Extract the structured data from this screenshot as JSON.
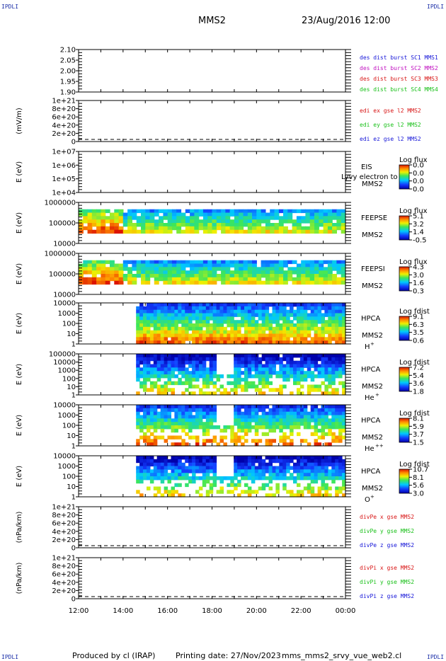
{
  "header": {
    "corner_label": "IPDLI",
    "spacecraft": "MMS2",
    "datetime": "23/Aug/2016 12:00"
  },
  "footer": {
    "produced_by": "Produced by cl (IRAP)",
    "printing_date": "Printing date: 27/Nov/2023",
    "filename": "mms_mms2_srvy_vue_web2.cl"
  },
  "colors": {
    "blue": "#1515d8",
    "red": "#d81515",
    "magenta": "#c010c0",
    "green": "#19c019",
    "accent_corner": "#1a2ea8"
  },
  "chart_data": [
    {
      "type": "line",
      "panel": "spacecraft-status",
      "ylabel": "",
      "yticks": [
        "2.10",
        "2.05",
        "2.00",
        "1.95",
        "1.90"
      ],
      "ylim": [
        1.9,
        2.1
      ],
      "legend": [
        "des dist burst SC1 MMS1",
        "des dist burst SC2 MMS2",
        "des dist burst SC3 MMS3",
        "des dist burst SC4 MMS4"
      ],
      "legend_colors": [
        "#1515d8",
        "#c010c0",
        "#d81515",
        "#19c019"
      ],
      "series": []
    },
    {
      "type": "line",
      "panel": "edi-electric-field",
      "ylabel": "(mV/m)",
      "yticks": [
        "1e+21",
        "8e+20",
        "6e+20",
        "4e+20",
        "2e+20",
        "0"
      ],
      "ylim": [
        0,
        1e+21
      ],
      "legend": [
        "edi ex gse l2 MMS2",
        "edi ey gse l2 MMS2",
        "edi ez gse l2 MMS2"
      ],
      "legend_colors": [
        "#d81515",
        "#19c019",
        "#1515d8"
      ],
      "series": [
        {
          "values": [
            0,
            0
          ]
        }
      ]
    },
    {
      "type": "heatmap",
      "panel": "eis",
      "ylabel": "E (eV)",
      "yticks": [
        "1e+07",
        "1e+06",
        "1e+05",
        "1e+04"
      ],
      "ylim": [
        10000.0,
        10000000.0
      ],
      "log": true,
      "instrument": "EIS",
      "spacecraft": "MMS2",
      "overlay_text": "Lyvy electron to",
      "colorbar": {
        "title": "Log flux",
        "ticks": [
          "0.0",
          "0.0",
          "0.0",
          "0.0"
        ]
      },
      "coverage": []
    },
    {
      "type": "heatmap",
      "panel": "feepse",
      "ylabel": "E (eV)",
      "yticks": [
        "1000000",
        "100000",
        "10000"
      ],
      "ylim": [
        10000.0,
        1000000.0
      ],
      "log": true,
      "instrument": "FEEPSE",
      "spacecraft": "MMS2",
      "colorbar": {
        "title": "Log flux",
        "ticks": [
          "5.1",
          "3.2",
          "1.4",
          "-0.5"
        ]
      },
      "coverage": [
        [
          "12:00",
          "24:00"
        ]
      ]
    },
    {
      "type": "heatmap",
      "panel": "feepsi",
      "ylabel": "E (eV)",
      "yticks": [
        "1000000",
        "100000",
        "10000"
      ],
      "ylim": [
        10000.0,
        1000000.0
      ],
      "log": true,
      "instrument": "FEEPSI",
      "spacecraft": "MMS2",
      "colorbar": {
        "title": "Log flux",
        "ticks": [
          "4.3",
          "3.0",
          "1.6",
          "0.3"
        ]
      },
      "coverage": [
        [
          "12:00",
          "24:00"
        ]
      ]
    },
    {
      "type": "heatmap",
      "panel": "hpca-h",
      "ylabel": "E (eV)",
      "yticks": [
        "10000",
        "1000",
        "100",
        "10",
        "1"
      ],
      "ylim": [
        1,
        10000
      ],
      "log": true,
      "instrument": "HPCA",
      "spacecraft": "MMS2",
      "species": "H",
      "charge": "+",
      "colorbar": {
        "title": "Log fdist",
        "ticks": [
          "9.1",
          "6.3",
          "3.5",
          "0.6"
        ]
      },
      "coverage": [
        [
          "14:35",
          "24:00"
        ]
      ]
    },
    {
      "type": "heatmap",
      "panel": "hpca-he",
      "ylabel": "E (eV)",
      "yticks": [
        "100000",
        "10000",
        "1000",
        "100",
        "10",
        "1"
      ],
      "ylim": [
        1,
        100000
      ],
      "log": true,
      "instrument": "HPCA",
      "spacecraft": "MMS2",
      "species": "He",
      "charge": "+",
      "colorbar": {
        "title": "Log fdist",
        "ticks": [
          "7.2",
          "5.4",
          "3.6",
          "1.8"
        ]
      },
      "coverage": [
        [
          "14:35",
          "24:00"
        ]
      ]
    },
    {
      "type": "heatmap",
      "panel": "hpca-he2",
      "ylabel": "E (eV)",
      "yticks": [
        "10000",
        "1000",
        "100",
        "10",
        "1"
      ],
      "ylim": [
        1,
        10000
      ],
      "log": true,
      "instrument": "HPCA",
      "spacecraft": "MMS2",
      "species": "He",
      "charge": "++",
      "colorbar": {
        "title": "Log fdist",
        "ticks": [
          "8.1",
          "5.9",
          "3.7",
          "1.5"
        ]
      },
      "coverage": [
        [
          "14:35",
          "24:00"
        ]
      ]
    },
    {
      "type": "heatmap",
      "panel": "hpca-o",
      "ylabel": "E (eV)",
      "yticks": [
        "10000",
        "1000",
        "100",
        "10",
        "1"
      ],
      "ylim": [
        1,
        10000
      ],
      "log": true,
      "instrument": "HPCA",
      "spacecraft": "MMS2",
      "species": "O",
      "charge": "+",
      "colorbar": {
        "title": "Log fdist",
        "ticks": [
          "10.7",
          "8.1",
          "5.6",
          "3.0"
        ]
      },
      "coverage": [
        [
          "14:35",
          "24:00"
        ]
      ]
    },
    {
      "type": "line",
      "panel": "divpe",
      "ylabel": "(nPa/km)",
      "yticks": [
        "1e+21",
        "8e+20",
        "6e+20",
        "4e+20",
        "2e+20",
        "0"
      ],
      "ylim": [
        0,
        1e+21
      ],
      "legend": [
        "divPe x gse MMS2",
        "divPe y gse MMS2",
        "divPe z gse MMS2"
      ],
      "legend_colors": [
        "#d81515",
        "#19c019",
        "#1515d8"
      ],
      "series": [
        {
          "values": [
            0,
            0
          ]
        }
      ]
    },
    {
      "type": "line",
      "panel": "divpi",
      "ylabel": "(nPa/km)",
      "yticks": [
        "1e+21",
        "8e+20",
        "6e+20",
        "4e+20",
        "2e+20",
        "0"
      ],
      "ylim": [
        0,
        1e+21
      ],
      "legend": [
        "divPi x gse MMS2",
        "divPi y gse MMS2",
        "divPi z gse MMS2"
      ],
      "legend_colors": [
        "#d81515",
        "#19c019",
        "#1515d8"
      ],
      "series": [
        {
          "values": [
            0,
            0
          ]
        }
      ]
    }
  ],
  "time_axis": {
    "ticks": [
      "12:00",
      "14:00",
      "16:00",
      "18:00",
      "20:00",
      "22:00",
      "00:00"
    ]
  }
}
